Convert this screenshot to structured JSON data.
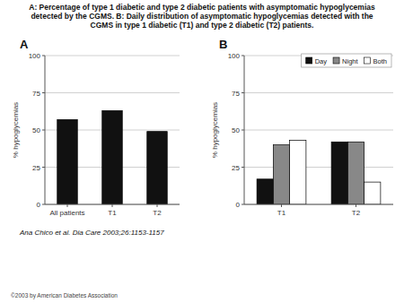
{
  "title": [
    "A: Percentage of type 1 diabetic and type 2 diabetic patients with asymptomatic hypoglycemias",
    "detected by the CGMS. B: Daily distribution of asymptomatic hypoglycemias detected with the",
    "CGMS in type 1 diabetic (T1) and type 2 diabetic (T2) patients."
  ],
  "annotations": [
    "Ana Chico et al. Dia Care 2003;26:1153-1157",
    "©2003 by American Diabetes Association"
  ],
  "chart_data": [
    {
      "type": "bar",
      "title": "A",
      "categories": [
        "All patients",
        "T1",
        "T2"
      ],
      "values": [
        57,
        63,
        49
      ],
      "color": "#111111",
      "ylabel": "% hypoglycemias",
      "ylim": [
        0,
        100
      ],
      "yticks": [
        0,
        25,
        50,
        75,
        100
      ],
      "grid": true
    },
    {
      "type": "bar",
      "title": "B",
      "categories": [
        "T1",
        "T2"
      ],
      "series": [
        {
          "name": "Day",
          "color": "#111111",
          "values": [
            17,
            42
          ]
        },
        {
          "name": "Night",
          "color": "#888888",
          "values": [
            40,
            42
          ]
        },
        {
          "name": "Both",
          "color": "#ffffff",
          "values": [
            43,
            15
          ]
        }
      ],
      "ylabel": "% hypoglycemias",
      "ylim": [
        0,
        100
      ],
      "yticks": [
        0,
        25,
        50,
        75,
        100
      ],
      "grid": true,
      "legend": "upper right"
    }
  ]
}
